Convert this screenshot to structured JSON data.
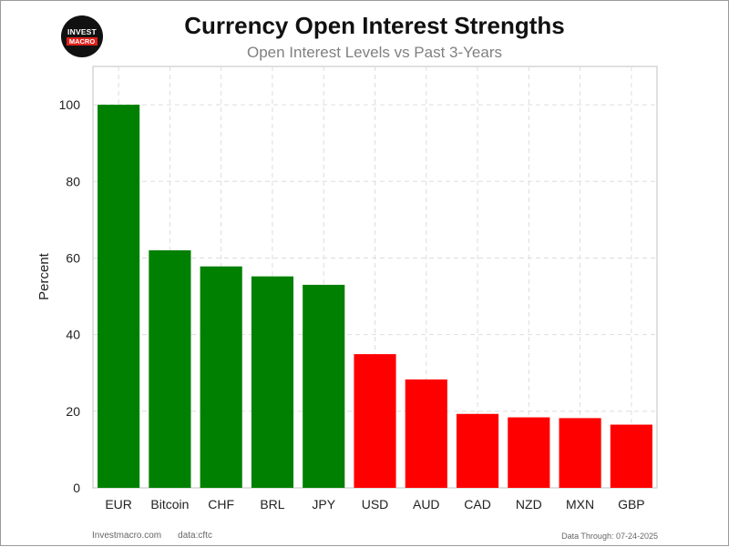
{
  "logo": {
    "top": "INVEST",
    "bottom": "MACRO"
  },
  "header": {
    "title": "Currency Open Interest Strengths",
    "subtitle": "Open Interest Levels vs Past 3-Years"
  },
  "footer": {
    "site": "Investmacro.com",
    "source": "data:cftc",
    "through": "Data Through: 07-24-2025"
  },
  "colors": {
    "positive": "#008000",
    "negative": "#ff0000"
  },
  "chart_data": {
    "type": "bar",
    "categories": [
      "EUR",
      "Bitcoin",
      "CHF",
      "BRL",
      "JPY",
      "USD",
      "AUD",
      "CAD",
      "NZD",
      "MXN",
      "GBP"
    ],
    "values": [
      100,
      62,
      57.8,
      55.2,
      53,
      34.9,
      28.3,
      19.3,
      18.4,
      18.2,
      16.5
    ],
    "bar_colors": [
      "green",
      "green",
      "green",
      "green",
      "green",
      "red",
      "red",
      "red",
      "red",
      "red",
      "red"
    ],
    "ylabel": "Percent",
    "xlabel": "",
    "ylim": [
      0,
      110
    ],
    "yticks": [
      0,
      20,
      40,
      60,
      80,
      100
    ],
    "grid": true
  }
}
